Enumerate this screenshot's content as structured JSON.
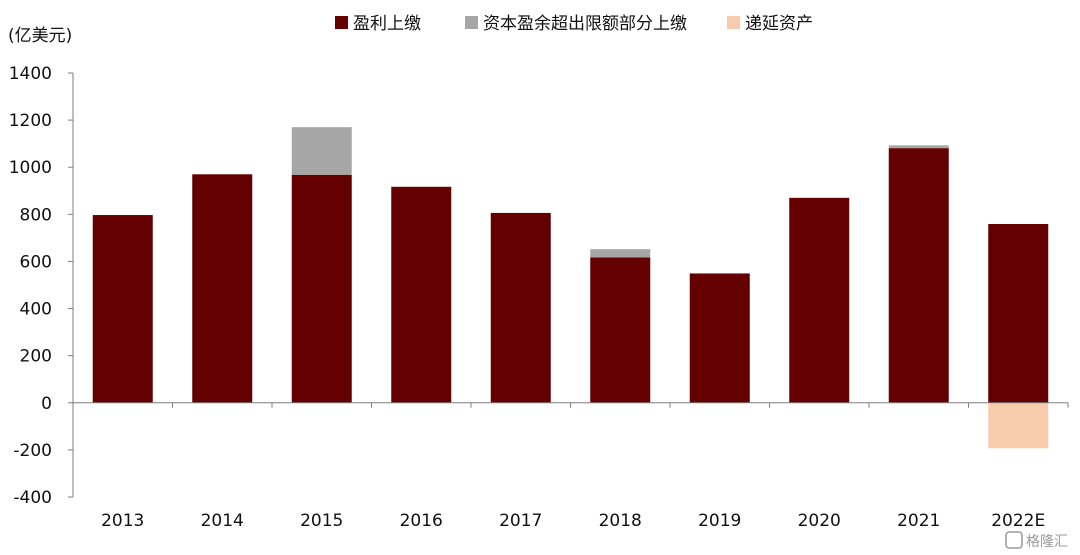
{
  "chart_data": {
    "type": "bar",
    "stacked": true,
    "unit_label": "(亿美元)",
    "categories": [
      "2013",
      "2014",
      "2015",
      "2016",
      "2017",
      "2018",
      "2019",
      "2020",
      "2021",
      "2022E"
    ],
    "series": [
      {
        "name": "盈利上缴",
        "color": "#640000",
        "values": [
          797,
          970,
          968,
          917,
          806,
          617,
          549,
          870,
          1081,
          759
        ]
      },
      {
        "name": "资本盈余超出限额部分上缴",
        "color": "#a6a6a6",
        "values": [
          0,
          0,
          202,
          0,
          0,
          35,
          0,
          0,
          12,
          0
        ]
      },
      {
        "name": "递延资产",
        "color": "#f8cbad",
        "values": [
          0,
          0,
          0,
          0,
          0,
          0,
          0,
          0,
          0,
          -193
        ]
      }
    ],
    "ylim": [
      -400,
      1400
    ],
    "yticks": [
      -400,
      -200,
      0,
      200,
      400,
      600,
      800,
      1000,
      1200,
      1400
    ],
    "legend_position": "top",
    "grid": false
  },
  "watermark": {
    "text": "格隆汇"
  }
}
